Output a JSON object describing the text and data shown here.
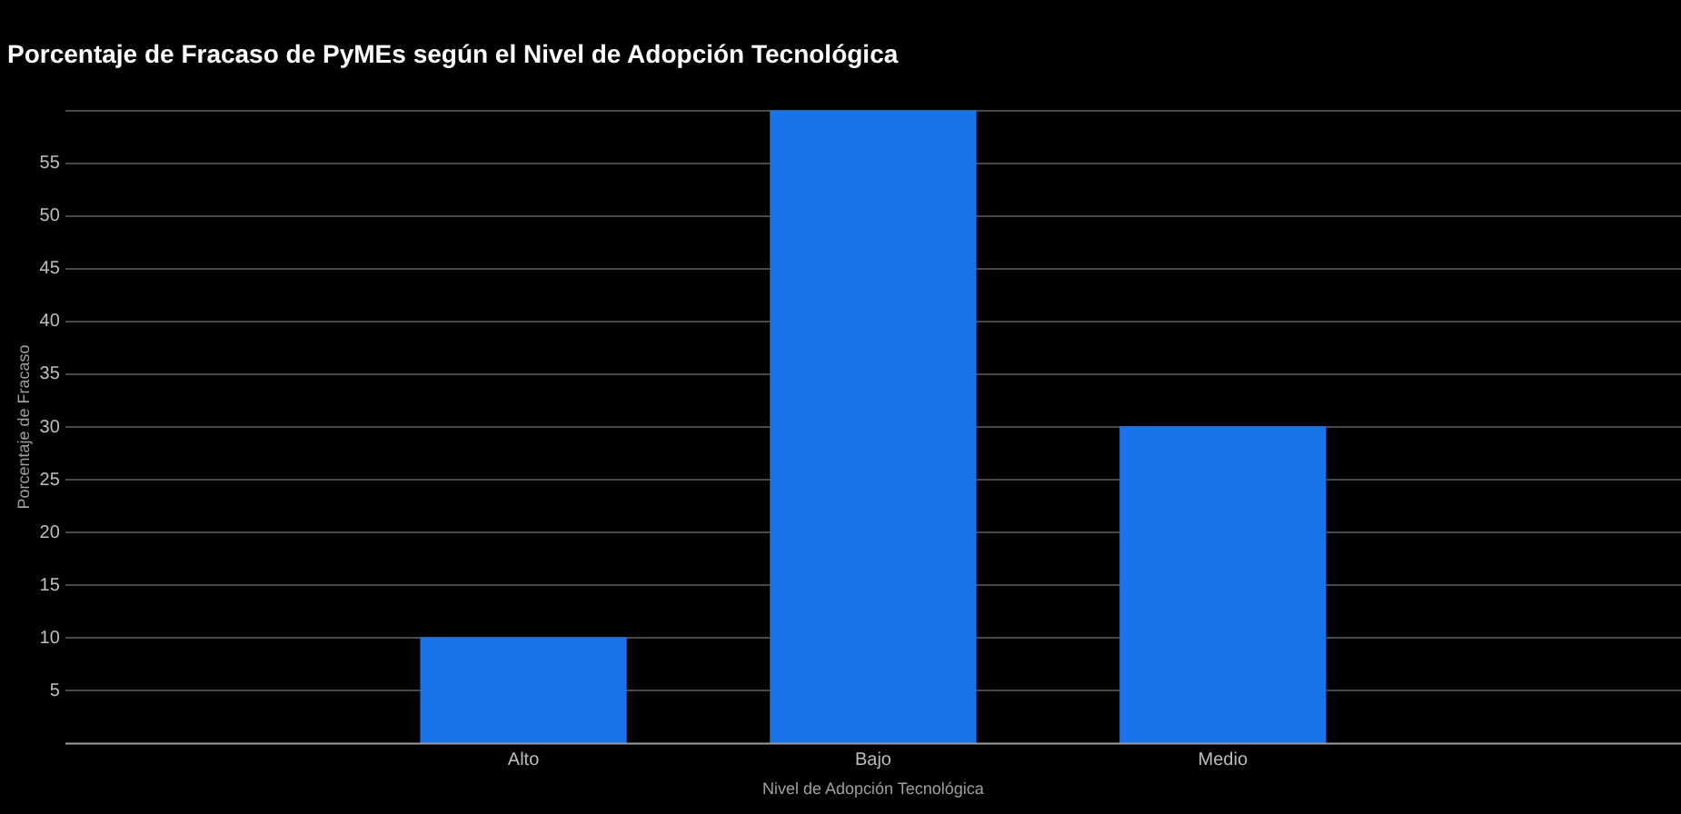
{
  "chart_data": {
    "type": "bar",
    "title": "Porcentaje de Fracaso de PyMEs según el Nivel de Adopción Tecnológica",
    "xlabel": "Nivel de Adopción Tecnológica",
    "ylabel": "Porcentaje de Fracaso",
    "categories": [
      "Alto",
      "Bajo",
      "Medio"
    ],
    "values": [
      10,
      60,
      30
    ],
    "color": "#1a73e8",
    "ylim": [
      0,
      60
    ],
    "yticks": [
      5,
      10,
      15,
      20,
      25,
      30,
      35,
      40,
      45,
      50,
      55,
      {
        "value": 60,
        "label": null
      }
    ],
    "grid": "y",
    "legend": false
  }
}
